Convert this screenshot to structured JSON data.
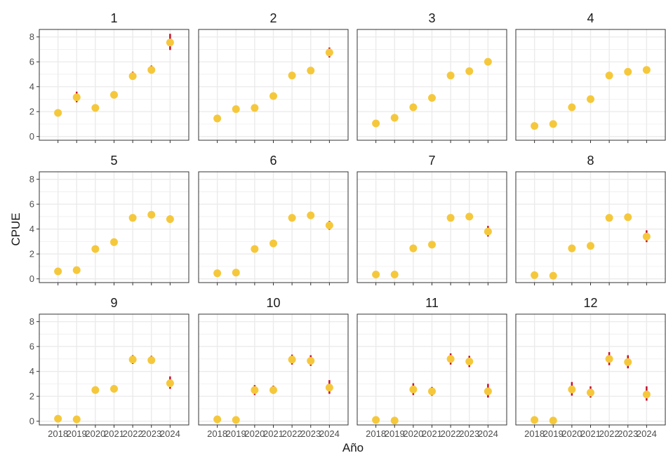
{
  "chart_data": {
    "type": "scatter",
    "subtype": "faceted point range (error bars)",
    "xlabel": "Año",
    "ylabel": "CPUE",
    "x_categories": [
      "2018",
      "2019",
      "2020",
      "2021",
      "2022",
      "2023",
      "2024"
    ],
    "ylim": [
      -0.3,
      8.6
    ],
    "yticks": [
      0,
      2,
      4,
      6,
      8
    ],
    "grid": true,
    "legend": "none",
    "colors": {
      "point": "#F5C83C",
      "errorbar": "#C8102E",
      "grid": "#EBEBEB",
      "panel_border": "#333333",
      "text": "#1A1A1A",
      "tick_text": "#4D4D4D"
    },
    "facets": [
      {
        "label": "1",
        "values": [
          1.9,
          3.15,
          2.3,
          3.35,
          4.85,
          5.35,
          7.55
        ],
        "lower": [
          1.8,
          2.75,
          2.15,
          3.1,
          4.55,
          5.05,
          6.95
        ],
        "upper": [
          2.0,
          3.6,
          2.45,
          3.6,
          5.2,
          5.7,
          8.25
        ]
      },
      {
        "label": "2",
        "values": [
          1.45,
          2.2,
          2.3,
          3.25,
          4.9,
          5.3,
          6.75
        ],
        "lower": [
          1.35,
          2.1,
          2.2,
          3.15,
          4.65,
          5.05,
          6.35
        ],
        "upper": [
          1.55,
          2.3,
          2.4,
          3.35,
          5.15,
          5.55,
          7.15
        ]
      },
      {
        "label": "3",
        "values": [
          1.05,
          1.5,
          2.35,
          3.1,
          4.9,
          5.25,
          6.0
        ],
        "lower": [
          0.95,
          1.4,
          2.25,
          3.0,
          4.75,
          5.1,
          5.75
        ],
        "upper": [
          1.15,
          1.6,
          2.45,
          3.2,
          5.05,
          5.4,
          6.25
        ]
      },
      {
        "label": "4",
        "values": [
          0.85,
          1.0,
          2.35,
          3.0,
          4.9,
          5.2,
          5.35
        ],
        "lower": [
          0.75,
          0.9,
          2.25,
          2.9,
          4.8,
          5.1,
          5.1
        ],
        "upper": [
          0.95,
          1.1,
          2.45,
          3.1,
          5.0,
          5.3,
          5.6
        ]
      },
      {
        "label": "5",
        "values": [
          0.6,
          0.7,
          2.4,
          2.95,
          4.9,
          5.15,
          4.8
        ],
        "lower": [
          0.5,
          0.6,
          2.3,
          2.85,
          4.8,
          5.05,
          4.5
        ],
        "upper": [
          0.7,
          0.8,
          2.5,
          3.05,
          5.0,
          5.25,
          5.1
        ]
      },
      {
        "label": "6",
        "values": [
          0.45,
          0.5,
          2.4,
          2.85,
          4.9,
          5.1,
          4.3
        ],
        "lower": [
          0.35,
          0.4,
          2.3,
          2.75,
          4.8,
          5.0,
          3.95
        ],
        "upper": [
          0.55,
          0.6,
          2.5,
          2.95,
          5.0,
          5.2,
          4.65
        ]
      },
      {
        "label": "7",
        "values": [
          0.35,
          0.35,
          2.45,
          2.75,
          4.9,
          5.0,
          3.8
        ],
        "lower": [
          0.25,
          0.25,
          2.35,
          2.65,
          4.8,
          4.9,
          3.4
        ],
        "upper": [
          0.45,
          0.45,
          2.55,
          2.85,
          5.0,
          5.1,
          4.25
        ]
      },
      {
        "label": "8",
        "values": [
          0.3,
          0.25,
          2.45,
          2.65,
          4.9,
          4.95,
          3.4
        ],
        "lower": [
          0.2,
          0.15,
          2.25,
          2.5,
          4.7,
          4.75,
          2.95
        ],
        "upper": [
          0.4,
          0.35,
          2.7,
          2.8,
          5.15,
          5.2,
          3.9
        ]
      },
      {
        "label": "9",
        "values": [
          0.2,
          0.15,
          2.5,
          2.6,
          4.95,
          4.9,
          3.05
        ],
        "lower": [
          0.1,
          0.05,
          2.25,
          2.35,
          4.6,
          4.6,
          2.6
        ],
        "upper": [
          0.3,
          0.25,
          2.8,
          2.85,
          5.3,
          5.25,
          3.6
        ]
      },
      {
        "label": "10",
        "values": [
          0.15,
          0.1,
          2.5,
          2.5,
          4.95,
          4.85,
          2.7
        ],
        "lower": [
          0.05,
          0.05,
          2.1,
          2.2,
          4.55,
          4.45,
          2.2
        ],
        "upper": [
          0.25,
          0.2,
          2.9,
          2.85,
          5.35,
          5.3,
          3.3
        ]
      },
      {
        "label": "11",
        "values": [
          0.1,
          0.05,
          2.55,
          2.4,
          5.0,
          4.8,
          2.4
        ],
        "lower": [
          0.05,
          0.0,
          2.1,
          2.05,
          4.55,
          4.35,
          1.9
        ],
        "upper": [
          0.2,
          0.15,
          3.05,
          2.75,
          5.45,
          5.25,
          3.0
        ]
      },
      {
        "label": "12",
        "values": [
          0.1,
          0.05,
          2.55,
          2.3,
          5.0,
          4.75,
          2.15
        ],
        "lower": [
          0.05,
          0.0,
          2.05,
          1.9,
          4.5,
          4.25,
          1.65
        ],
        "upper": [
          0.2,
          0.15,
          3.15,
          2.8,
          5.55,
          5.3,
          2.8
        ]
      }
    ]
  }
}
